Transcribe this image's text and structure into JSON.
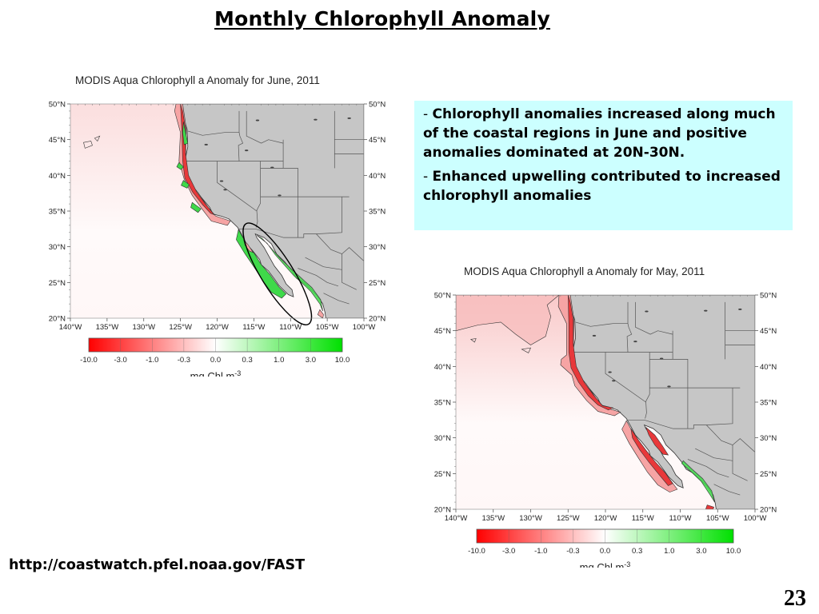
{
  "slide": {
    "title": "Monthly Chlorophyll Anomaly",
    "page_number": "23",
    "source_link": "http://coastwatch.pfel.noaa.gov/FAST"
  },
  "notes": {
    "background_color": "#ccffff",
    "bullets": [
      {
        "dash": "- ",
        "text": "Chlorophyll anomalies increased along much of the coastal regions in June and positive anomalies dominated at 20N-30N."
      },
      {
        "dash": "- ",
        "text": "Enhanced upwelling contributed to increased chlorophyll anomalies"
      }
    ]
  },
  "maps": [
    {
      "id": "june",
      "title": "MODIS Aqua Chlorophyll a Anomaly for June, 2011",
      "lat_labels": [
        "50°N",
        "45°N",
        "40°N",
        "35°N",
        "30°N",
        "25°N",
        "20°N"
      ],
      "lon_labels": [
        "140°W",
        "135°W",
        "130°W",
        "125°W",
        "120°W",
        "115°W",
        "110°W",
        "105°W",
        "100°W"
      ],
      "extent": {
        "lon_min": -140,
        "lon_max": -100,
        "lat_min": 20,
        "lat_max": 50
      },
      "highlight": "ellipse around Baja California / Gulf of California (positive anomaly region, 20N-30N)",
      "pattern": "mostly positive (green) anomalies along Baja California and Gulf of California; mixed red/green along US coast; offshore faint pink"
    },
    {
      "id": "may",
      "title": "MODIS Aqua Chlorophyll a Anomaly for May, 2011",
      "lat_labels": [
        "50°N",
        "45°N",
        "40°N",
        "35°N",
        "30°N",
        "25°N",
        "20°N"
      ],
      "lon_labels": [
        "140°W",
        "135°W",
        "130°W",
        "125°W",
        "120°W",
        "115°W",
        "110°W",
        "105°W",
        "100°W"
      ],
      "extent": {
        "lon_min": -140,
        "lon_max": -100,
        "lat_min": 20,
        "lat_max": 50
      },
      "pattern": "predominantly negative (red) anomalies along the coast and north offshore; slight green along mainland Mexico coast"
    }
  ],
  "colorbar": {
    "ticks": [
      "-10.0",
      "-3.0",
      "-1.0",
      "-0.3",
      "0.0",
      "0.3",
      "1.0",
      "3.0",
      "10.0"
    ],
    "units": "mg Chl m",
    "units_exp": "-3",
    "colors": {
      "negative": "#ff0000",
      "zero": "#ffffff",
      "positive": "#00e000"
    }
  },
  "colors": {
    "land": "#c6c6c6",
    "ocean_faint": "#fde9e9",
    "anomaly_red": "#e8383a",
    "anomaly_pink": "#f6a4a4",
    "anomaly_green": "#3fd94a"
  }
}
